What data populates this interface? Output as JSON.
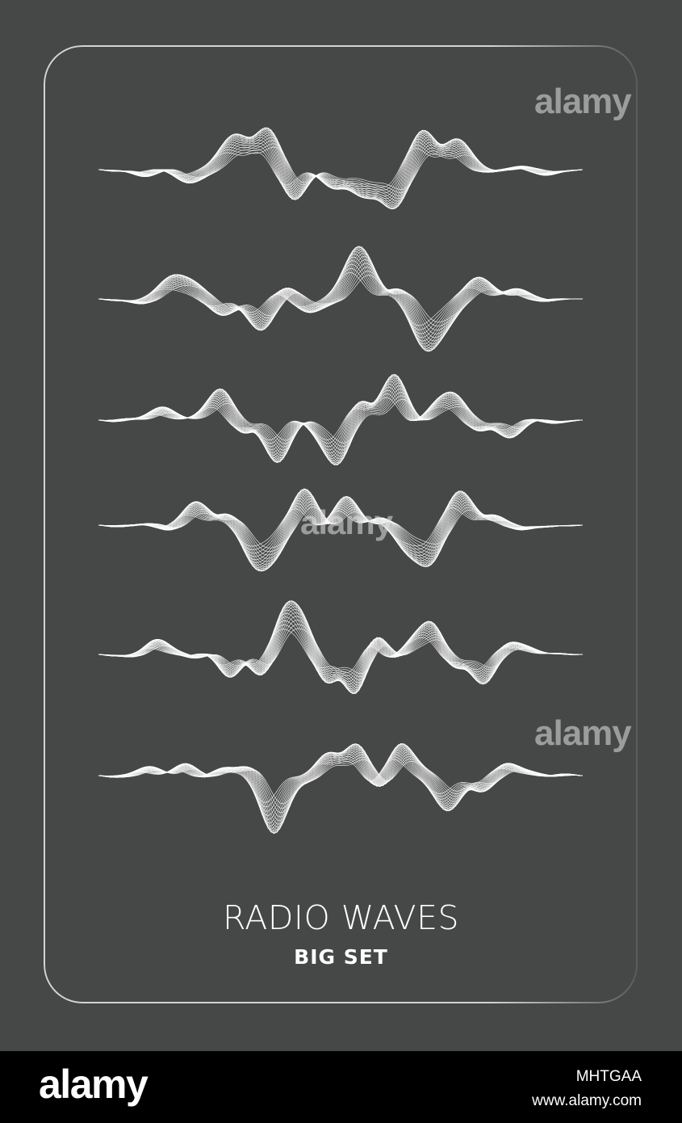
{
  "poster": {
    "title": "RADIO WAVES",
    "subtitle": "BIG SET",
    "background_color": "#464747",
    "frame_color": "#d4d4d4",
    "wave_color": "#ffffff"
  },
  "waves": [
    {
      "name": "wave-1"
    },
    {
      "name": "wave-2"
    },
    {
      "name": "wave-3"
    },
    {
      "name": "wave-4"
    },
    {
      "name": "wave-5"
    },
    {
      "name": "wave-6"
    }
  ],
  "watermark": {
    "logo_text": "alamy"
  },
  "footer_bar": {
    "logo_text": "alamy",
    "image_id": "MHTGAA",
    "site_url": "www.alamy.com"
  }
}
